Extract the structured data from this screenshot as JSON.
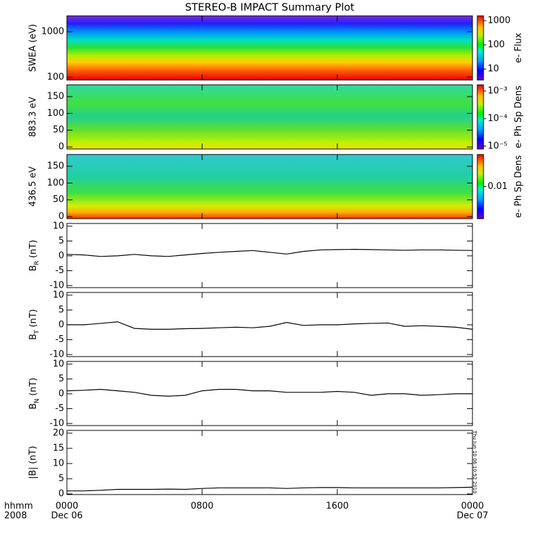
{
  "chart_data": {
    "type": "multi",
    "title": "STEREO-B IMPACT Summary Plot",
    "xlim": [
      0,
      24
    ],
    "xticks": [
      {
        "value": 0,
        "label": "0000"
      },
      {
        "value": 8,
        "label": "0800"
      },
      {
        "value": 16,
        "label": "1600"
      },
      {
        "value": 24,
        "label": "0000"
      }
    ],
    "date_labels": [
      "Dec 06",
      "Dec 07"
    ],
    "corner_labels": [
      "hhmm",
      "2008"
    ],
    "timestamp": "Thu Jun 10 06:10:52 2010",
    "x": [
      0,
      1,
      2,
      3,
      4,
      5,
      6,
      7,
      8,
      9,
      10,
      11,
      12,
      13,
      14,
      15,
      16,
      17,
      18,
      19,
      20,
      21,
      22,
      23,
      24
    ],
    "panels": [
      {
        "type": "heatmap",
        "ylabel": "SWEA (eV)",
        "log": true,
        "ylim": [
          87,
          2230
        ],
        "yticks": [
          100,
          1000
        ],
        "colorbar": {
          "label": "e- Flux",
          "log": true,
          "lim": [
            3.5,
            1585
          ],
          "ticks": [
            10,
            100,
            1000
          ]
        }
      },
      {
        "type": "heatmap",
        "ylabel": "883.3 eV",
        "log": false,
        "ylim": [
          -6,
          185
        ],
        "yticks": [
          0,
          50,
          100,
          150
        ],
        "colorbar": {
          "label": "e- Ph Sp Dens",
          "log": true,
          "lim": [
            7.9e-06,
            0.00168
          ],
          "ticks": [
            {
              "value": 1e-05,
              "label": "10⁻⁵"
            },
            {
              "value": 0.0001,
              "label": "10⁻⁴"
            },
            {
              "value": 0.001,
              "label": "10⁻³"
            }
          ]
        }
      },
      {
        "type": "heatmap",
        "ylabel": "436.5 eV",
        "log": false,
        "ylim": [
          -6,
          185
        ],
        "yticks": [
          0,
          50,
          100,
          150
        ],
        "colorbar": {
          "label": "e- Ph Sp Dens",
          "log": true,
          "lim": [
            0.002,
            0.05
          ],
          "ticks": [
            0.01
          ]
        }
      },
      {
        "type": "line",
        "ylabel": "B",
        "ylabel_sub": "R",
        "ylabel_unit": "(nT)",
        "ylim": [
          -10.7,
          10.9
        ],
        "yticks": [
          -10,
          -5,
          0,
          5,
          10
        ],
        "color": "#000000",
        "values": [
          0.5,
          0.3,
          -0.2,
          0,
          0.5,
          0,
          -0.2,
          0.3,
          0.8,
          1.2,
          1.5,
          1.8,
          1.2,
          0.6,
          1.5,
          2,
          2.1,
          2.2,
          2.1,
          2,
          1.9,
          2,
          2,
          1.9,
          1.8
        ]
      },
      {
        "type": "line",
        "ylabel": "B",
        "ylabel_sub": "T",
        "ylabel_unit": "(nT)",
        "ylim": [
          -10.7,
          10.9
        ],
        "yticks": [
          -10,
          -5,
          0,
          5,
          10
        ],
        "color": "#000000",
        "values": [
          0,
          0,
          0.5,
          1,
          -1.2,
          -1.5,
          -1.5,
          -1.3,
          -1.2,
          -1,
          -0.8,
          -1,
          -0.5,
          0.8,
          -0.2,
          0,
          0,
          0.3,
          0.5,
          0.6,
          -0.5,
          -0.3,
          -0.5,
          -0.8,
          -1.5
        ]
      },
      {
        "type": "line",
        "ylabel": "B",
        "ylabel_sub": "N",
        "ylabel_unit": "(nT)",
        "ylim": [
          -10.7,
          10.9
        ],
        "yticks": [
          -10,
          -5,
          0,
          5,
          10
        ],
        "color": "#000000",
        "values": [
          1,
          1.2,
          1.5,
          1,
          0.5,
          -0.5,
          -0.8,
          -0.5,
          1,
          1.5,
          1.5,
          1,
          1,
          0.5,
          0.5,
          0.5,
          0.8,
          0.5,
          -0.5,
          0,
          0,
          -0.5,
          -0.3,
          0,
          0
        ]
      },
      {
        "type": "line",
        "ylabel": "|B| (nT)",
        "ylim": [
          -0.2,
          20.9
        ],
        "yticks": [
          0,
          5,
          10,
          15,
          20
        ],
        "color": "#000000",
        "values": [
          1,
          1,
          1.2,
          1.5,
          1.5,
          1.5,
          1.6,
          1.5,
          1.8,
          2,
          2,
          2,
          2,
          1.8,
          2,
          2.1,
          2.1,
          2,
          2,
          2,
          2,
          2,
          2,
          2.1,
          2.2
        ]
      }
    ]
  }
}
